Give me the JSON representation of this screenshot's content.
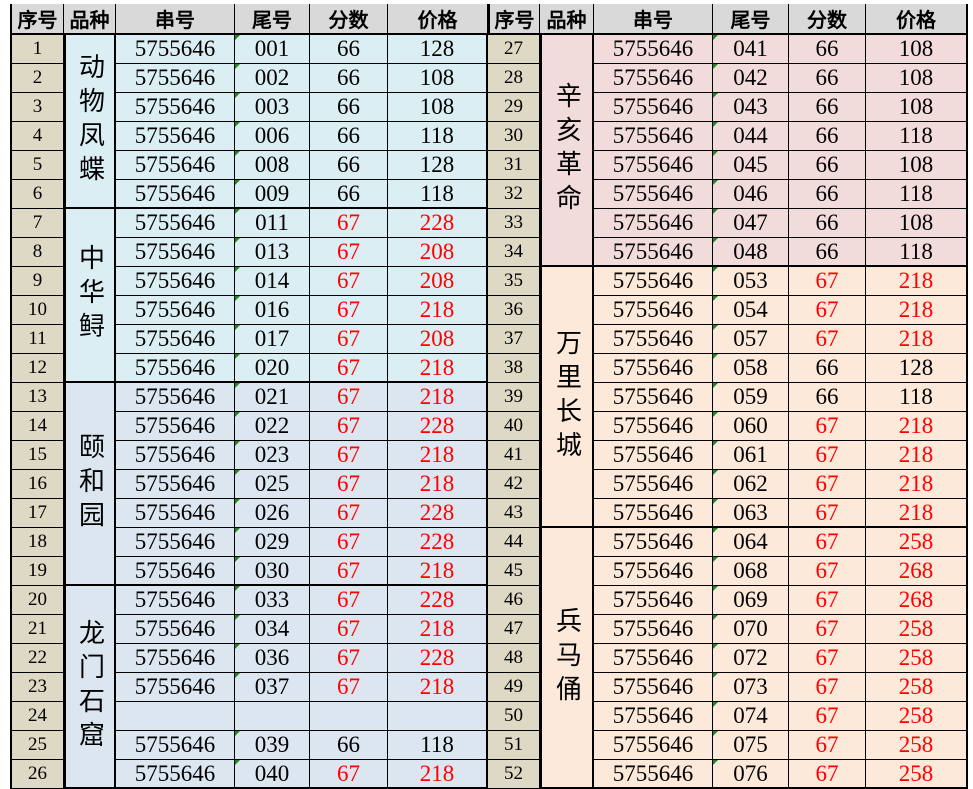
{
  "headers": [
    "序号",
    "品种",
    "串号",
    "尾号",
    "分数",
    "价格"
  ],
  "colors": {
    "header": "#d9d9d9",
    "index": "#ddd9c4",
    "blue": "#daeef3",
    "bluegray": "#dce6f1",
    "pink": "#f2dcdb",
    "peach": "#fde9d9",
    "highlight": "#ff0000"
  },
  "left": {
    "groups": [
      {
        "name": "动物凤蝶",
        "color": "#daeef3",
        "rows": [
          [
            "1",
            "5755646",
            "001",
            "66",
            "128"
          ],
          [
            "2",
            "5755646",
            "002",
            "66",
            "108"
          ],
          [
            "3",
            "5755646",
            "003",
            "66",
            "108"
          ],
          [
            "4",
            "5755646",
            "006",
            "66",
            "118"
          ],
          [
            "5",
            "5755646",
            "008",
            "66",
            "128"
          ],
          [
            "6",
            "5755646",
            "009",
            "66",
            "118"
          ]
        ]
      },
      {
        "name": "中华鲟",
        "color": "#daeef3",
        "rows": [
          [
            "7",
            "5755646",
            "011",
            "67",
            "228"
          ],
          [
            "8",
            "5755646",
            "013",
            "67",
            "208"
          ],
          [
            "9",
            "5755646",
            "014",
            "67",
            "208"
          ],
          [
            "10",
            "5755646",
            "016",
            "67",
            "218"
          ],
          [
            "11",
            "5755646",
            "017",
            "67",
            "208"
          ],
          [
            "12",
            "5755646",
            "020",
            "67",
            "218"
          ]
        ]
      },
      {
        "name": "颐和园",
        "color": "#dce6f1",
        "rows": [
          [
            "13",
            "5755646",
            "021",
            "67",
            "218"
          ],
          [
            "14",
            "5755646",
            "022",
            "67",
            "228"
          ],
          [
            "15",
            "5755646",
            "023",
            "67",
            "218"
          ],
          [
            "16",
            "5755646",
            "025",
            "67",
            "218"
          ],
          [
            "17",
            "5755646",
            "026",
            "67",
            "228"
          ],
          [
            "18",
            "5755646",
            "029",
            "67",
            "228"
          ],
          [
            "19",
            "5755646",
            "030",
            "67",
            "218"
          ]
        ]
      },
      {
        "name": "龙门石窟",
        "color": "#dce6f1",
        "rows": [
          [
            "20",
            "5755646",
            "033",
            "67",
            "228"
          ],
          [
            "21",
            "5755646",
            "034",
            "67",
            "218"
          ],
          [
            "22",
            "5755646",
            "036",
            "67",
            "228"
          ],
          [
            "23",
            "5755646",
            "037",
            "67",
            "218"
          ],
          [
            "24",
            "",
            "",
            "",
            ""
          ],
          [
            "25",
            "5755646",
            "039",
            "66",
            "118"
          ],
          [
            "26",
            "5755646",
            "040",
            "67",
            "218"
          ]
        ]
      }
    ]
  },
  "right": {
    "groups": [
      {
        "name": "辛亥革命",
        "color": "#f2dcdb",
        "rows": [
          [
            "27",
            "5755646",
            "041",
            "66",
            "108"
          ],
          [
            "28",
            "5755646",
            "042",
            "66",
            "108"
          ],
          [
            "29",
            "5755646",
            "043",
            "66",
            "108"
          ],
          [
            "30",
            "5755646",
            "044",
            "66",
            "118"
          ],
          [
            "31",
            "5755646",
            "045",
            "66",
            "108"
          ],
          [
            "32",
            "5755646",
            "046",
            "66",
            "118"
          ],
          [
            "33",
            "5755646",
            "047",
            "66",
            "108"
          ],
          [
            "34",
            "5755646",
            "048",
            "66",
            "118"
          ]
        ]
      },
      {
        "name": "万里长城",
        "color": "#fde9d9",
        "rows": [
          [
            "35",
            "5755646",
            "053",
            "67",
            "218"
          ],
          [
            "36",
            "5755646",
            "054",
            "67",
            "218"
          ],
          [
            "37",
            "5755646",
            "057",
            "67",
            "218"
          ],
          [
            "38",
            "5755646",
            "058",
            "66",
            "128"
          ],
          [
            "39",
            "5755646",
            "059",
            "66",
            "118"
          ],
          [
            "40",
            "5755646",
            "060",
            "67",
            "218"
          ],
          [
            "41",
            "5755646",
            "061",
            "67",
            "218"
          ],
          [
            "42",
            "5755646",
            "062",
            "67",
            "218"
          ],
          [
            "43",
            "5755646",
            "063",
            "67",
            "218"
          ]
        ]
      },
      {
        "name": "兵马俑",
        "color": "#fde9d9",
        "rows": [
          [
            "44",
            "5755646",
            "064",
            "67",
            "258"
          ],
          [
            "45",
            "5755646",
            "068",
            "67",
            "268"
          ],
          [
            "46",
            "5755646",
            "069",
            "67",
            "268"
          ],
          [
            "47",
            "5755646",
            "070",
            "67",
            "258"
          ],
          [
            "48",
            "5755646",
            "072",
            "67",
            "258"
          ],
          [
            "49",
            "5755646",
            "073",
            "67",
            "258"
          ],
          [
            "50",
            "5755646",
            "074",
            "67",
            "258"
          ],
          [
            "51",
            "5755646",
            "075",
            "67",
            "258"
          ],
          [
            "52",
            "5755646",
            "076",
            "67",
            "258"
          ]
        ]
      }
    ]
  }
}
